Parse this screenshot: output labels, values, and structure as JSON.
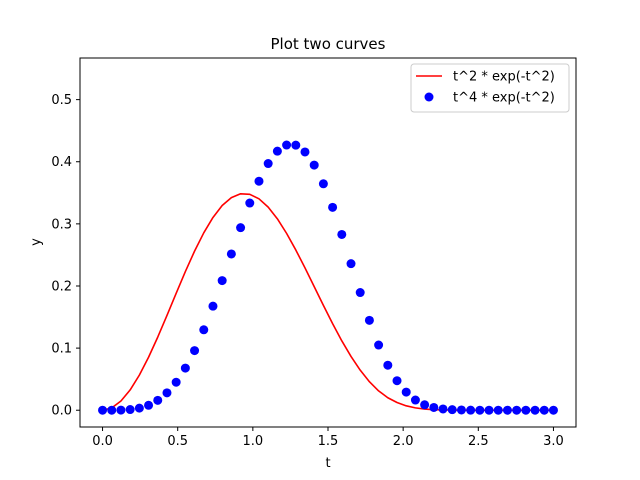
{
  "chart_data": {
    "type": "line",
    "title": "Plot two curves",
    "xlabel": "t",
    "ylabel": "y",
    "xlim": [
      -0.15,
      3.15
    ],
    "ylim": [
      -0.027,
      0.567
    ],
    "x_ticks": [
      0.0,
      0.5,
      1.0,
      1.5,
      2.0,
      2.5,
      3.0
    ],
    "x_tick_labels": [
      "0.0",
      "0.5",
      "1.0",
      "1.5",
      "2.0",
      "2.5",
      "3.0"
    ],
    "y_ticks": [
      0.0,
      0.1,
      0.2,
      0.3,
      0.4,
      0.5
    ],
    "y_tick_labels": [
      "0.0",
      "0.1",
      "0.2",
      "0.3",
      "0.4",
      "0.5"
    ],
    "grid": false,
    "legend_position": "top-right",
    "series": [
      {
        "name": "t^2 * exp(-t^2)",
        "style": "line",
        "color": "#ff0000",
        "x": [
          0.0,
          0.0612,
          0.1224,
          0.1837,
          0.2449,
          0.3061,
          0.3673,
          0.4286,
          0.4898,
          0.551,
          0.6122,
          0.6735,
          0.7347,
          0.7959,
          0.8571,
          0.9184,
          0.9796,
          1.0408,
          1.102,
          1.1633,
          1.2245,
          1.2857,
          1.3469,
          1.4082,
          1.4694,
          1.5306,
          1.5918,
          1.6531,
          1.7143,
          1.7755,
          1.8367,
          1.898,
          1.9592,
          2.0204,
          2.0816,
          2.1429,
          2.2041,
          2.2653,
          2.3265,
          2.3878,
          2.449,
          2.5102,
          2.5714,
          2.6327,
          2.6939,
          2.7551,
          2.8163,
          2.8776,
          2.9388,
          3.0
        ],
        "y": [
          0.0,
          0.0037,
          0.0148,
          0.0327,
          0.0565,
          0.0853,
          0.1177,
          0.1525,
          0.1882,
          0.2232,
          0.2561,
          0.2856,
          0.3103,
          0.3295,
          0.3423,
          0.3484,
          0.3476,
          0.3403,
          0.3269,
          0.3081,
          0.2847,
          0.258,
          0.2291,
          0.199,
          0.1688,
          0.1394,
          0.1117,
          0.0866,
          0.0645,
          0.0459,
          0.0311,
          0.0201,
          0.0124,
          0.0071,
          0.0038,
          0.0019,
          0.0009,
          0.0004,
          0.0002,
          0.0001,
          0.0,
          0.0,
          0.0,
          0.0,
          0.0,
          0.0,
          0.0,
          0.0,
          0.0,
          0.0
        ]
      },
      {
        "name": "t^4 * exp(-t^2)",
        "style": "scatter",
        "color": "#0000ff",
        "x": [
          0.0,
          0.0612,
          0.1224,
          0.1837,
          0.2449,
          0.3061,
          0.3673,
          0.4286,
          0.4898,
          0.551,
          0.6122,
          0.6735,
          0.7347,
          0.7959,
          0.8571,
          0.9184,
          0.9796,
          1.0408,
          1.102,
          1.1633,
          1.2245,
          1.2857,
          1.3469,
          1.4082,
          1.4694,
          1.5306,
          1.5918,
          1.6531,
          1.7143,
          1.7755,
          1.8367,
          1.898,
          1.9592,
          2.0204,
          2.0816,
          2.1429,
          2.2041,
          2.2653,
          2.3265,
          2.3878,
          2.449,
          2.5102,
          2.5714,
          2.6327,
          2.6939,
          2.7551,
          2.8163,
          2.8776,
          2.9388,
          3.0
        ],
        "y": [
          0.0,
          0.0,
          0.0002,
          0.0011,
          0.0034,
          0.008,
          0.0159,
          0.028,
          0.0451,
          0.0678,
          0.096,
          0.1295,
          0.1675,
          0.2087,
          0.2515,
          0.2939,
          0.3335,
          0.3687,
          0.3971,
          0.417,
          0.4269,
          0.4267,
          0.4157,
          0.3946,
          0.3645,
          0.3266,
          0.2829,
          0.2359,
          0.1895,
          0.1447,
          0.1049,
          0.0725,
          0.0475,
          0.0292,
          0.0164,
          0.0088,
          0.0044,
          0.002,
          0.0009,
          0.0004,
          0.0001,
          0.0,
          0.0,
          0.0,
          0.0,
          0.0,
          0.0,
          0.0,
          0.0,
          0.0
        ]
      }
    ]
  }
}
